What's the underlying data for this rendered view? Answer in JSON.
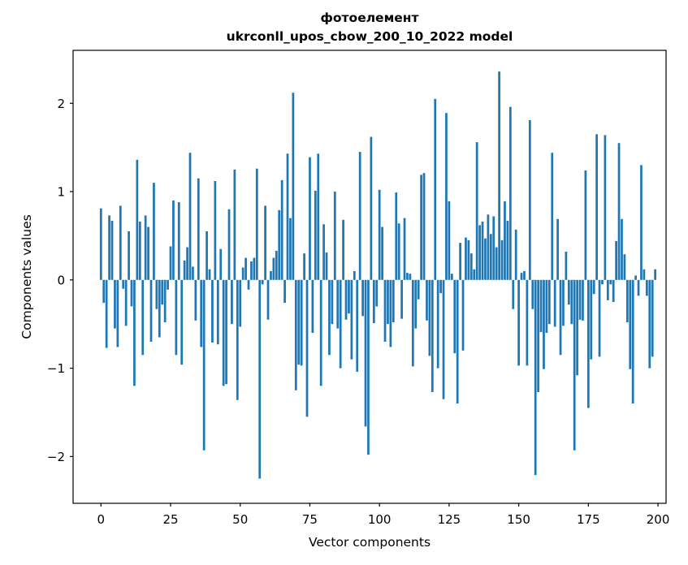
{
  "chart_data": {
    "type": "bar",
    "title_line1": "фотоелемент",
    "title_line2": "ukrconll_upos_cbow_200_10_2022 model",
    "xlabel": "Vector components",
    "ylabel": "Components values",
    "legend": "none",
    "grid": false,
    "bar_color": "#1f77b4",
    "bar_width_units": 0.8,
    "x_is_index": true,
    "x_ticks": [
      0,
      25,
      50,
      75,
      100,
      125,
      150,
      175,
      200
    ],
    "y_ticks": [
      2,
      1,
      0,
      -1,
      -2
    ],
    "xlim": [
      -10.0,
      202.9
    ],
    "ylim": [
      -2.53,
      2.6
    ],
    "values": [
      0.81,
      -0.26,
      -0.77,
      0.73,
      0.67,
      -0.55,
      -0.76,
      0.84,
      -0.1,
      -0.52,
      0.55,
      -0.3,
      -1.2,
      1.36,
      0.66,
      -0.85,
      0.73,
      0.6,
      -0.7,
      1.1,
      -0.33,
      -0.65,
      -0.28,
      -0.48,
      -0.11,
      0.38,
      0.9,
      -0.85,
      0.88,
      -0.96,
      0.22,
      0.37,
      1.44,
      0.15,
      -0.46,
      1.15,
      -0.76,
      -1.93,
      0.55,
      0.12,
      -0.71,
      1.12,
      -0.73,
      0.35,
      -1.2,
      -1.18,
      0.8,
      -0.5,
      1.25,
      -1.36,
      -0.53,
      0.14,
      0.25,
      -0.11,
      0.21,
      0.25,
      1.26,
      -2.25,
      -0.05,
      0.84,
      -0.45,
      0.1,
      0.25,
      0.33,
      0.79,
      1.13,
      -0.26,
      1.43,
      0.7,
      2.12,
      -1.25,
      -0.96,
      -0.97,
      0.3,
      -1.55,
      1.39,
      -0.6,
      1.01,
      1.43,
      -1.2,
      0.63,
      0.31,
      -0.85,
      -0.5,
      1.0,
      -0.55,
      -1.0,
      0.68,
      -0.45,
      -0.38,
      -0.9,
      0.1,
      -1.04,
      1.45,
      -0.41,
      -1.66,
      -1.98,
      1.62,
      -0.49,
      -0.3,
      1.02,
      0.6,
      -0.7,
      -0.5,
      -0.76,
      -0.48,
      0.99,
      0.64,
      -0.44,
      0.7,
      0.08,
      0.07,
      -0.98,
      -0.55,
      -0.22,
      1.19,
      1.21,
      -0.46,
      -0.86,
      -1.27,
      2.05,
      -1.0,
      -0.15,
      -1.35,
      1.89,
      0.89,
      0.07,
      -0.83,
      -1.4,
      0.42,
      -0.8,
      0.48,
      0.45,
      0.3,
      0.12,
      1.56,
      0.62,
      0.66,
      0.47,
      0.74,
      0.52,
      0.72,
      0.37,
      2.36,
      0.45,
      0.89,
      0.67,
      1.96,
      -0.33,
      0.57,
      -0.97,
      0.08,
      0.1,
      -0.97,
      1.81,
      -0.33,
      -2.21,
      -1.27,
      -0.59,
      -1.01,
      -0.6,
      -0.5,
      1.44,
      -0.53,
      0.69,
      -0.85,
      -0.52,
      0.32,
      -0.28,
      -0.5,
      -1.93,
      -1.08,
      -0.45,
      -0.46,
      1.24,
      -1.45,
      -0.9,
      -0.16,
      1.65,
      -0.87,
      -0.05,
      1.64,
      -0.23,
      -0.05,
      -0.25,
      0.44,
      1.55,
      0.69,
      0.29,
      -0.48,
      -1.01,
      -1.4,
      0.05,
      -0.18,
      1.3,
      0.12,
      -0.18,
      -1.0,
      -0.87,
      0.12
    ]
  }
}
